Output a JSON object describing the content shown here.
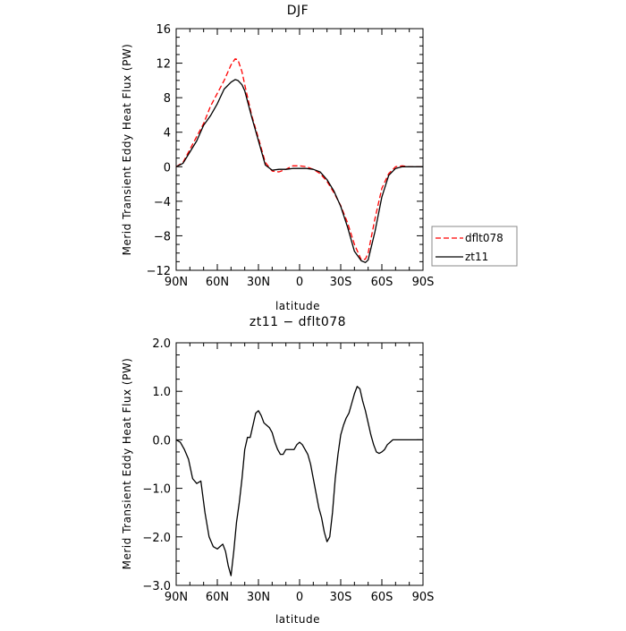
{
  "chart_data": [
    {
      "type": "line",
      "title": "DJF",
      "xlabel": "latitude",
      "ylabel": "Merid Transient Eddy Heat Flux (PW)",
      "x_tick_labels": [
        "90N",
        "60N",
        "30N",
        "0",
        "30S",
        "60S",
        "90S"
      ],
      "x_tick_values": [
        90,
        60,
        30,
        0,
        -30,
        -60,
        -90
      ],
      "xlim": [
        90,
        -90
      ],
      "y_tick_labels": [
        "16",
        "12",
        "8",
        "4",
        "0",
        "−4",
        "−8",
        "−12"
      ],
      "y_tick_values": [
        16,
        12,
        8,
        4,
        0,
        -4,
        -8,
        -12
      ],
      "ylim": [
        -12,
        16
      ],
      "grid": false,
      "legend_position": "outside-right",
      "series": [
        {
          "name": "dflt078",
          "color": "#ff0000",
          "dash": "dashed",
          "x": [
            90,
            85,
            80,
            75,
            70,
            65,
            60,
            55,
            50,
            47,
            45,
            42,
            40,
            35,
            30,
            25,
            20,
            15,
            10,
            5,
            0,
            -5,
            -10,
            -15,
            -20,
            -25,
            -30,
            -35,
            -40,
            -45,
            -48,
            -50,
            -55,
            -60,
            -65,
            -70,
            -75,
            -80,
            -85,
            -90
          ],
          "y": [
            0,
            0.5,
            2,
            3.5,
            5,
            7,
            8.5,
            10,
            11.8,
            12.5,
            12.4,
            11,
            9.5,
            6,
            3.3,
            0.5,
            -0.5,
            -0.6,
            -0.3,
            0.1,
            0.1,
            0,
            -0.3,
            -0.8,
            -1.7,
            -3,
            -4.5,
            -6.5,
            -9,
            -10.8,
            -10.7,
            -10,
            -6,
            -2.5,
            -0.8,
            0,
            0.1,
            0,
            0,
            0
          ]
        },
        {
          "name": "zt11",
          "color": "#000000",
          "dash": "solid",
          "x": [
            90,
            85,
            80,
            75,
            70,
            65,
            60,
            55,
            50,
            47,
            45,
            42,
            40,
            35,
            30,
            25,
            20,
            15,
            10,
            5,
            0,
            -5,
            -10,
            -15,
            -20,
            -25,
            -30,
            -35,
            -40,
            -45,
            -48,
            -50,
            -55,
            -60,
            -65,
            -70,
            -75,
            -80,
            -85,
            -90
          ],
          "y": [
            0,
            0.4,
            1.7,
            3,
            4.8,
            5.9,
            7.3,
            9,
            9.8,
            10.1,
            10,
            9.5,
            8.8,
            5.8,
            3,
            0.2,
            -0.4,
            -0.3,
            -0.3,
            -0.2,
            -0.2,
            -0.2,
            -0.3,
            -0.6,
            -1.5,
            -2.8,
            -4.6,
            -7,
            -9.8,
            -10.9,
            -11.1,
            -10.8,
            -7.5,
            -3.5,
            -1,
            -0.2,
            0,
            0,
            0,
            0
          ]
        }
      ]
    },
    {
      "type": "line",
      "title": "zt11 − dflt078",
      "xlabel": "latitude",
      "ylabel": "Merid Transient Eddy Heat Flux (PW)",
      "x_tick_labels": [
        "90N",
        "60N",
        "30N",
        "0",
        "30S",
        "60S",
        "90S"
      ],
      "x_tick_values": [
        90,
        60,
        30,
        0,
        -30,
        -60,
        -90
      ],
      "xlim": [
        90,
        -90
      ],
      "y_tick_labels": [
        "2.0",
        "1.0",
        "0.0",
        "−1.0",
        "−2.0",
        "−3.0"
      ],
      "y_tick_values": [
        2,
        1,
        0,
        -1,
        -2,
        -3
      ],
      "ylim": [
        -3,
        2
      ],
      "grid": false,
      "series": [
        {
          "color": "#000000",
          "dash": "solid",
          "x": [
            90,
            87,
            84,
            81,
            78,
            75,
            72,
            69,
            66,
            63,
            60,
            58,
            56,
            54,
            52,
            50,
            48,
            46,
            44,
            42,
            40,
            38,
            36,
            34,
            32,
            30,
            28,
            26,
            24,
            22,
            20,
            18,
            16,
            14,
            12,
            10,
            8,
            6,
            4,
            2,
            0,
            -2,
            -4,
            -6,
            -8,
            -10,
            -12,
            -14,
            -16,
            -18,
            -20,
            -22,
            -24,
            -26,
            -28,
            -30,
            -32,
            -34,
            -36,
            -38,
            -40,
            -42,
            -44,
            -46,
            -48,
            -50,
            -52,
            -54,
            -56,
            -58,
            -60,
            -62,
            -64,
            -66,
            -68,
            -70,
            -72,
            -74,
            -76,
            -78,
            -80,
            -83,
            -86,
            -90
          ],
          "y": [
            0,
            -0.05,
            -0.2,
            -0.4,
            -0.8,
            -0.9,
            -0.85,
            -1.5,
            -2.0,
            -2.2,
            -2.25,
            -2.2,
            -2.15,
            -2.3,
            -2.6,
            -2.8,
            -2.3,
            -1.7,
            -1.3,
            -0.8,
            -0.2,
            0.05,
            0.05,
            0.3,
            0.55,
            0.6,
            0.5,
            0.35,
            0.3,
            0.25,
            0.15,
            -0.05,
            -0.2,
            -0.3,
            -0.3,
            -0.2,
            -0.2,
            -0.2,
            -0.2,
            -0.1,
            -0.05,
            -0.1,
            -0.2,
            -0.3,
            -0.5,
            -0.8,
            -1.1,
            -1.4,
            -1.6,
            -1.9,
            -2.1,
            -2.0,
            -1.5,
            -0.8,
            -0.3,
            0.1,
            0.3,
            0.45,
            0.55,
            0.75,
            0.95,
            1.1,
            1.05,
            0.8,
            0.6,
            0.35,
            0.1,
            -0.1,
            -0.25,
            -0.28,
            -0.25,
            -0.2,
            -0.1,
            -0.05,
            0,
            0,
            0,
            0,
            0,
            0,
            0,
            0,
            0,
            0
          ]
        }
      ]
    }
  ],
  "legend": {
    "entries": [
      {
        "label": "dflt078",
        "color": "#ff0000",
        "dash": "dashed"
      },
      {
        "label": "zt11",
        "color": "#000000",
        "dash": "solid"
      }
    ]
  }
}
